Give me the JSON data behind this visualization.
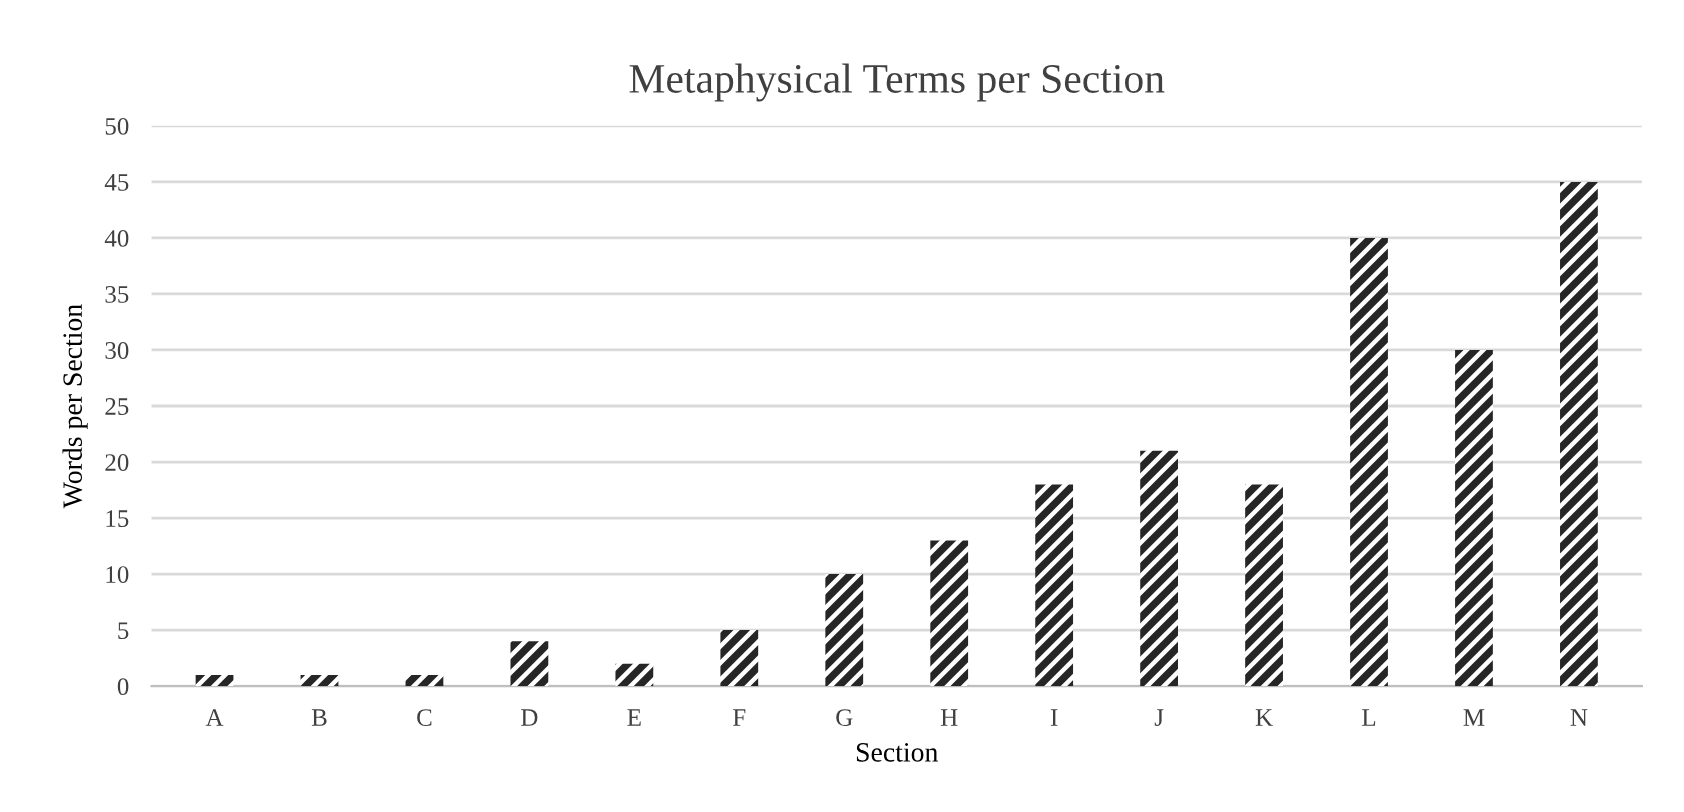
{
  "chart_data": {
    "type": "bar",
    "title": "Metaphysical Terms per Section",
    "xlabel": "Section",
    "ylabel": "Words per Section",
    "categories": [
      "A",
      "B",
      "C",
      "D",
      "E",
      "F",
      "G",
      "H",
      "I",
      "J",
      "K",
      "L",
      "M",
      "N"
    ],
    "values": [
      1,
      1,
      1,
      4,
      2,
      5,
      10,
      13,
      18,
      21,
      18,
      40,
      30,
      45
    ],
    "color": "#262626",
    "ylim": [
      0,
      50
    ],
    "yticks": [
      0,
      5,
      10,
      15,
      20,
      25,
      30,
      35,
      40,
      45,
      50
    ],
    "grid": "y",
    "legend": false
  }
}
